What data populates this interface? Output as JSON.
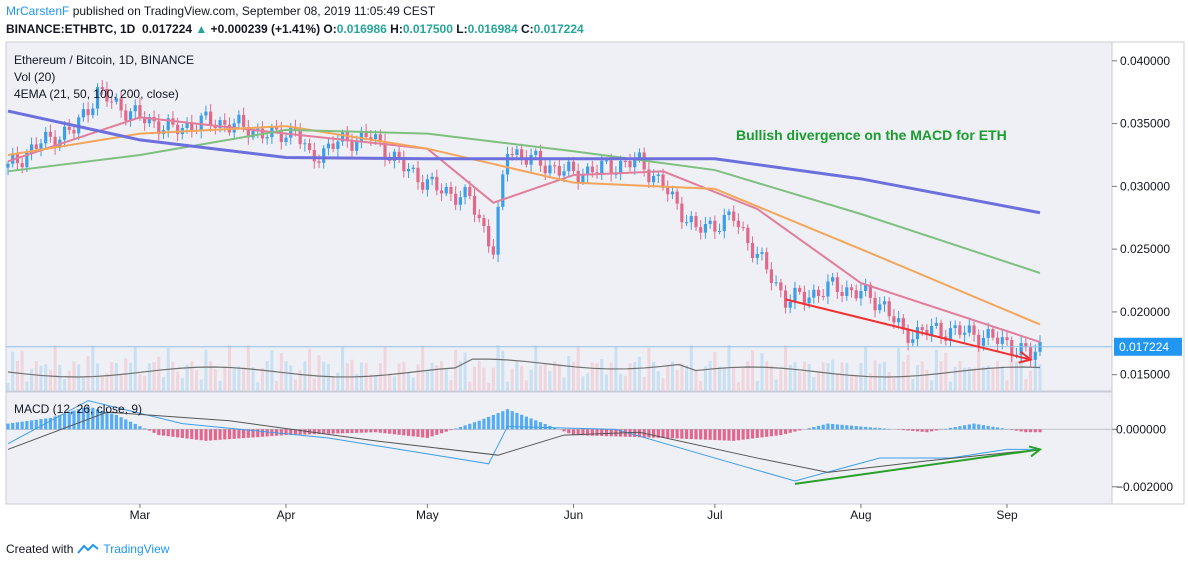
{
  "header": {
    "author": "MrCarstenF",
    "published_text": "published on TradingView.com, September 08, 2019 11:05:49 CEST",
    "symbol": "BINANCE:ETHBTC, 1D",
    "last": "0.017224",
    "change": "+0.000239 (+1.41%)",
    "o_label": "O:",
    "o_value": "0.016986",
    "h_label": "H:",
    "h_value": "0.017500",
    "l_label": "L:",
    "l_value": "0.016984",
    "c_label": "C:",
    "c_value": "0.017224"
  },
  "price_pane": {
    "title": "Ethereum / Bitcoin, 1D, BINANCE",
    "vol_label": "Vol (20)",
    "ema_label": "4EMA (21, 50, 100, 200, close)",
    "annotation": "Bullish divergence on the MACD for ETH",
    "last_price_tag": "0.017224"
  },
  "macd_pane": {
    "label": "MACD (12, 26, close, 9)"
  },
  "footer": {
    "created_with": "Created with",
    "brand": "TradingView"
  },
  "colors": {
    "background": "#eef0f5",
    "up_candle": "#3d9ee8",
    "down_candle": "#e0698a",
    "ema21": "#e27d9b",
    "ema50": "#f5a55a",
    "ema100": "#7fbf7f",
    "ema200": "#6c6fdc",
    "annotation": "#1a9c2e",
    "price_divergence_arrow": "#f23030",
    "macd_divergence_arrow": "#2aa02a"
  },
  "chart_data": [
    {
      "type": "candlestick",
      "title": "Ethereum / Bitcoin, 1D, BINANCE",
      "x_tick_labels": [
        "Mar",
        "Apr",
        "May",
        "Jun",
        "Jul",
        "Aug",
        "Sep"
      ],
      "x_range": [
        "2019-02-01",
        "2019-09-08"
      ],
      "y_tick_labels": [
        "0.040000",
        "0.035000",
        "0.030000",
        "0.025000",
        "0.020000",
        "0.015000"
      ],
      "ylim": [
        0.0137,
        0.0415
      ],
      "close_series": [
        {
          "date": "2019-02-01",
          "close": 0.0315
        },
        {
          "date": "2019-02-08",
          "close": 0.0335
        },
        {
          "date": "2019-02-15",
          "close": 0.0345
        },
        {
          "date": "2019-02-20",
          "close": 0.0375
        },
        {
          "date": "2019-02-24",
          "close": 0.0365
        },
        {
          "date": "2019-03-01",
          "close": 0.0355
        },
        {
          "date": "2019-03-08",
          "close": 0.0345
        },
        {
          "date": "2019-03-15",
          "close": 0.0352
        },
        {
          "date": "2019-03-22",
          "close": 0.0348
        },
        {
          "date": "2019-03-29",
          "close": 0.034
        },
        {
          "date": "2019-04-03",
          "close": 0.0345
        },
        {
          "date": "2019-04-06",
          "close": 0.0322
        },
        {
          "date": "2019-04-12",
          "close": 0.0335
        },
        {
          "date": "2019-04-19",
          "close": 0.034
        },
        {
          "date": "2019-04-26",
          "close": 0.0315
        },
        {
          "date": "2019-05-03",
          "close": 0.0298
        },
        {
          "date": "2019-05-10",
          "close": 0.029
        },
        {
          "date": "2019-05-15",
          "close": 0.025
        },
        {
          "date": "2019-05-18",
          "close": 0.033
        },
        {
          "date": "2019-05-25",
          "close": 0.0318
        },
        {
          "date": "2019-06-01",
          "close": 0.031
        },
        {
          "date": "2019-06-08",
          "close": 0.0315
        },
        {
          "date": "2019-06-15",
          "close": 0.032
        },
        {
          "date": "2019-06-20",
          "close": 0.03
        },
        {
          "date": "2019-06-27",
          "close": 0.0265
        },
        {
          "date": "2019-07-01",
          "close": 0.027
        },
        {
          "date": "2019-07-05",
          "close": 0.0275
        },
        {
          "date": "2019-07-10",
          "close": 0.0245
        },
        {
          "date": "2019-07-16",
          "close": 0.021
        },
        {
          "date": "2019-07-20",
          "close": 0.0212
        },
        {
          "date": "2019-07-26",
          "close": 0.022
        },
        {
          "date": "2019-08-01",
          "close": 0.0215
        },
        {
          "date": "2019-08-06",
          "close": 0.0205
        },
        {
          "date": "2019-08-10",
          "close": 0.0182
        },
        {
          "date": "2019-08-15",
          "close": 0.0185
        },
        {
          "date": "2019-08-20",
          "close": 0.0185
        },
        {
          "date": "2019-08-26",
          "close": 0.0182
        },
        {
          "date": "2019-09-01",
          "close": 0.0175
        },
        {
          "date": "2019-09-06",
          "close": 0.0165
        },
        {
          "date": "2019-09-08",
          "close": 0.0172
        }
      ],
      "ema_series": [
        {
          "name": "EMA 21",
          "points": [
            {
              "date": "2019-02-01",
              "value": 0.032
            },
            {
              "date": "2019-03-01",
              "value": 0.0355
            },
            {
              "date": "2019-04-01",
              "value": 0.0342
            },
            {
              "date": "2019-05-01",
              "value": 0.033
            },
            {
              "date": "2019-05-15",
              "value": 0.0287
            },
            {
              "date": "2019-06-01",
              "value": 0.0309
            },
            {
              "date": "2019-06-20",
              "value": 0.0312
            },
            {
              "date": "2019-07-10",
              "value": 0.0282
            },
            {
              "date": "2019-08-01",
              "value": 0.0223
            },
            {
              "date": "2019-09-08",
              "value": 0.0176
            }
          ]
        },
        {
          "name": "EMA 50",
          "points": [
            {
              "date": "2019-02-01",
              "value": 0.0325
            },
            {
              "date": "2019-03-01",
              "value": 0.0342
            },
            {
              "date": "2019-04-01",
              "value": 0.0348
            },
            {
              "date": "2019-05-01",
              "value": 0.033
            },
            {
              "date": "2019-06-01",
              "value": 0.0303
            },
            {
              "date": "2019-07-01",
              "value": 0.0298
            },
            {
              "date": "2019-08-01",
              "value": 0.025
            },
            {
              "date": "2019-09-08",
              "value": 0.019
            }
          ]
        },
        {
          "name": "EMA 100",
          "points": [
            {
              "date": "2019-02-01",
              "value": 0.0312
            },
            {
              "date": "2019-03-01",
              "value": 0.0325
            },
            {
              "date": "2019-04-01",
              "value": 0.0345
            },
            {
              "date": "2019-05-01",
              "value": 0.0342
            },
            {
              "date": "2019-06-01",
              "value": 0.0328
            },
            {
              "date": "2019-07-01",
              "value": 0.0313
            },
            {
              "date": "2019-08-01",
              "value": 0.0278
            },
            {
              "date": "2019-09-08",
              "value": 0.0231
            }
          ]
        },
        {
          "name": "EMA 200",
          "points": [
            {
              "date": "2019-02-01",
              "value": 0.036
            },
            {
              "date": "2019-03-01",
              "value": 0.0337
            },
            {
              "date": "2019-04-01",
              "value": 0.0323
            },
            {
              "date": "2019-05-01",
              "value": 0.0322
            },
            {
              "date": "2019-06-01",
              "value": 0.0322
            },
            {
              "date": "2019-07-01",
              "value": 0.0322
            },
            {
              "date": "2019-08-01",
              "value": 0.0306
            },
            {
              "date": "2019-09-08",
              "value": 0.0279
            }
          ]
        }
      ],
      "annotations": [
        {
          "text": "Bullish divergence on the MACD for ETH"
        },
        {
          "type": "arrow",
          "color": "red",
          "from": {
            "date": "2019-07-16",
            "value": 0.021
          },
          "to": {
            "date": "2019-09-06",
            "value": 0.0162
          }
        }
      ],
      "last_price": 0.017224
    },
    {
      "type": "bar+line",
      "title": "MACD (12, 26, close, 9)",
      "y_tick_labels": [
        "0.000000",
        "−0.002000"
      ],
      "ylim": [
        -0.0026,
        0.0013
      ],
      "histogram": [
        {
          "date": "2019-02-01",
          "value": 0.0002
        },
        {
          "date": "2019-02-10",
          "value": 0.0004
        },
        {
          "date": "2019-02-18",
          "value": 0.0008
        },
        {
          "date": "2019-02-24",
          "value": 0.0005
        },
        {
          "date": "2019-03-05",
          "value": -0.0002
        },
        {
          "date": "2019-03-15",
          "value": -0.0004
        },
        {
          "date": "2019-04-01",
          "value": -0.0002
        },
        {
          "date": "2019-04-20",
          "value": -0.0001
        },
        {
          "date": "2019-05-01",
          "value": -0.0003
        },
        {
          "date": "2019-05-12",
          "value": 0.0003
        },
        {
          "date": "2019-05-18",
          "value": 0.0007
        },
        {
          "date": "2019-06-01",
          "value": -0.0002
        },
        {
          "date": "2019-06-20",
          "value": -0.0003
        },
        {
          "date": "2019-07-05",
          "value": -0.0004
        },
        {
          "date": "2019-07-15",
          "value": -0.0002
        },
        {
          "date": "2019-07-25",
          "value": 0.0002
        },
        {
          "date": "2019-08-01",
          "value": 0.0001
        },
        {
          "date": "2019-08-15",
          "value": -0.0001
        },
        {
          "date": "2019-08-25",
          "value": 0.0002
        },
        {
          "date": "2019-09-05",
          "value": -0.0001
        }
      ],
      "series": [
        {
          "name": "MACD",
          "points": [
            {
              "date": "2019-02-01",
              "value": -0.0005
            },
            {
              "date": "2019-02-18",
              "value": 0.001
            },
            {
              "date": "2019-03-10",
              "value": 0.0002
            },
            {
              "date": "2019-04-10",
              "value": -0.0003
            },
            {
              "date": "2019-05-14",
              "value": -0.0012
            },
            {
              "date": "2019-05-18",
              "value": 0.0001
            },
            {
              "date": "2019-06-10",
              "value": 0.0
            },
            {
              "date": "2019-07-01",
              "value": -0.001
            },
            {
              "date": "2019-07-18",
              "value": -0.0018
            },
            {
              "date": "2019-08-05",
              "value": -0.001
            },
            {
              "date": "2019-08-20",
              "value": -0.001
            },
            {
              "date": "2019-09-01",
              "value": -0.0007
            },
            {
              "date": "2019-09-08",
              "value": -0.0007
            }
          ]
        },
        {
          "name": "Signal",
          "points": [
            {
              "date": "2019-02-01",
              "value": -0.0007
            },
            {
              "date": "2019-02-22",
              "value": 0.0006
            },
            {
              "date": "2019-03-20",
              "value": 0.0003
            },
            {
              "date": "2019-04-20",
              "value": -0.0004
            },
            {
              "date": "2019-05-16",
              "value": -0.0009
            },
            {
              "date": "2019-05-30",
              "value": -0.0002
            },
            {
              "date": "2019-06-15",
              "value": -0.0001
            },
            {
              "date": "2019-07-10",
              "value": -0.001
            },
            {
              "date": "2019-07-25",
              "value": -0.0015
            },
            {
              "date": "2019-08-15",
              "value": -0.0011
            },
            {
              "date": "2019-09-08",
              "value": -0.0007
            }
          ]
        }
      ],
      "annotations": [
        {
          "type": "arrow",
          "color": "green",
          "from": {
            "date": "2019-07-18",
            "value": -0.0019
          },
          "to": {
            "date": "2019-09-08",
            "value": -0.0007
          }
        }
      ]
    }
  ]
}
